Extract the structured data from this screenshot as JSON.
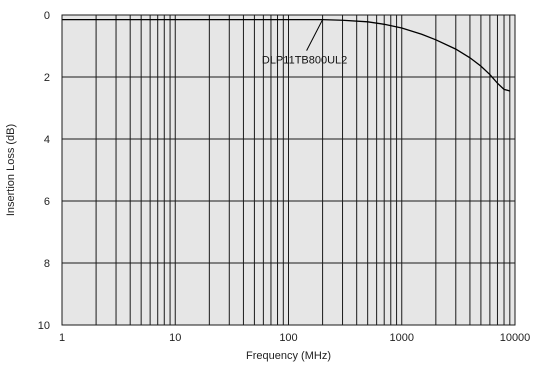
{
  "chart_data": {
    "type": "line",
    "xlabel": "Frequency (MHz)",
    "ylabel": "Insertion Loss (dB)",
    "xscale": "log",
    "xlim": [
      1,
      10000
    ],
    "ylim": [
      0,
      10
    ],
    "y_inverted": true,
    "grid": true,
    "x_ticks": [
      {
        "value": 1,
        "label": "1"
      },
      {
        "value": 10,
        "label": "10"
      },
      {
        "value": 100,
        "label": "100"
      },
      {
        "value": 1000,
        "label": "1000"
      },
      {
        "value": 10000,
        "label": "10000"
      }
    ],
    "y_ticks": [
      {
        "value": 0,
        "label": "0"
      },
      {
        "value": 2,
        "label": "2"
      },
      {
        "value": 4,
        "label": "4"
      },
      {
        "value": 6,
        "label": "6"
      },
      {
        "value": 8,
        "label": "8"
      },
      {
        "value": 10,
        "label": "10"
      }
    ],
    "series": [
      {
        "name": "DLP11TB800UL2",
        "x": [
          1,
          10,
          100,
          200,
          300,
          500,
          700,
          1000,
          1500,
          2000,
          3000,
          4000,
          5000,
          6000,
          7000,
          8000,
          9000
        ],
        "y": [
          0.15,
          0.15,
          0.15,
          0.15,
          0.17,
          0.22,
          0.3,
          0.42,
          0.62,
          0.8,
          1.1,
          1.38,
          1.65,
          1.92,
          2.2,
          2.4,
          2.45
        ]
      }
    ],
    "annotations": [
      {
        "text": "DLP11TB800UL2",
        "series": "DLP11TB800UL2",
        "x": 200,
        "y": 0.15
      }
    ]
  },
  "style": {
    "plot_background": "#e6e6e6",
    "grid_color": "#1a1a1a",
    "line_color": "#000000"
  }
}
